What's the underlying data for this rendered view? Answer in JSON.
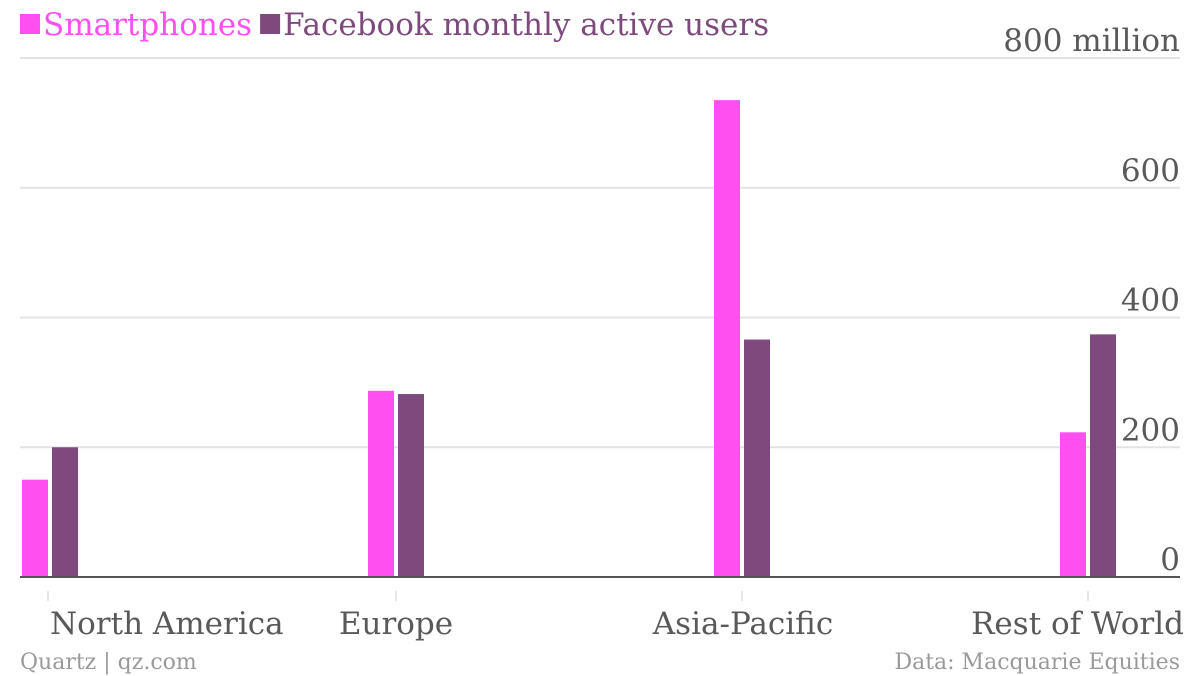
{
  "chart_data": {
    "type": "bar",
    "categories": [
      "North America",
      "Europe",
      "Asia-Pacific",
      "Rest of World"
    ],
    "series": [
      {
        "name": "Smartphones",
        "values": [
          150,
          287,
          735,
          223
        ],
        "color": "#ff4ff0"
      },
      {
        "name": "Facebook monthly active users",
        "values": [
          200,
          282,
          366,
          374
        ],
        "color": "#7e4a7e"
      }
    ],
    "y_ticks": [
      {
        "value": 0,
        "label": "0"
      },
      {
        "value": 200,
        "label": "200"
      },
      {
        "value": 400,
        "label": "400"
      },
      {
        "value": 600,
        "label": "600"
      },
      {
        "value": 800,
        "label": "800 million"
      }
    ],
    "ylim": [
      0,
      800
    ],
    "grid": true,
    "legend_position": "top-left",
    "title": "",
    "xlabel": "",
    "ylabel": ""
  },
  "footer": {
    "source_left": "Quartz | qz.com",
    "source_right": "Data: Macquarie Equities"
  },
  "colors": {
    "grid": "#e3e3e3",
    "axis": "#555555",
    "text": "#595959",
    "footer": "#9a9a9a"
  }
}
